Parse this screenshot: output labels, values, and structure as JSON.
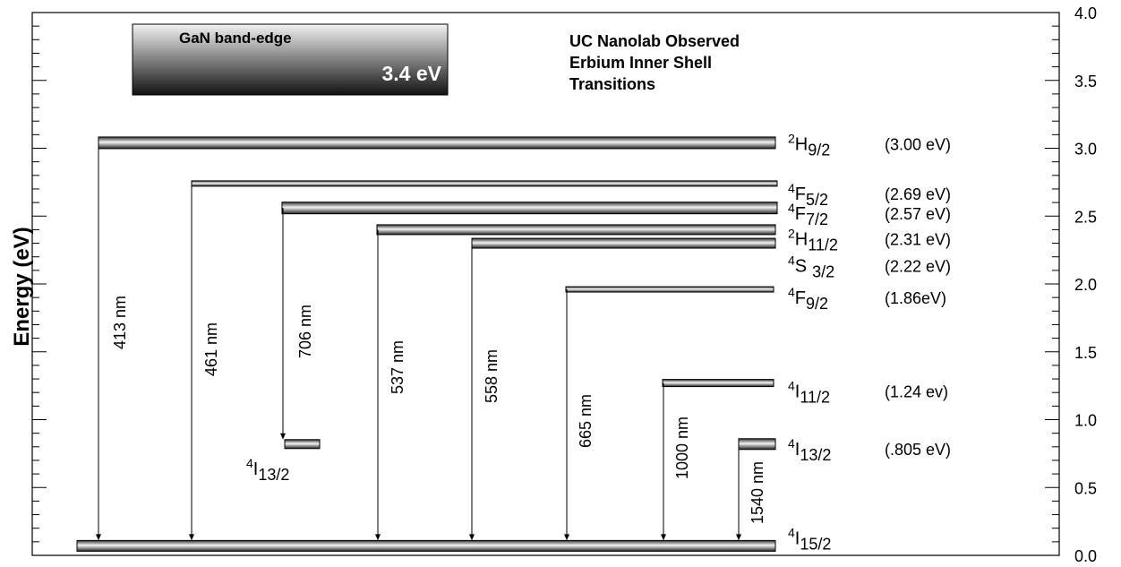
{
  "title": [
    "UC Nanolab Observed",
    "Erbium Inner Shell",
    "Transitions"
  ],
  "band_edge": {
    "label": "GaN band-edge",
    "value_label": "3.4 eV"
  },
  "axis": {
    "label": "Energy (eV)",
    "ylim": [
      0,
      4
    ],
    "yticks": [
      {
        "value": 0,
        "label": "0.0"
      },
      {
        "value": 0.5,
        "label": "0.5"
      },
      {
        "value": 1,
        "label": "1.0"
      },
      {
        "value": 1.5,
        "label": "1.5"
      },
      {
        "value": 2,
        "label": "2.0"
      },
      {
        "value": 2.5,
        "label": "2.5"
      },
      {
        "value": 3,
        "label": "3.0"
      },
      {
        "value": 3.5,
        "label": "3.5"
      },
      {
        "value": 4,
        "label": "4.0"
      }
    ],
    "minor_yticks": [
      0.1,
      0.2,
      0.3,
      0.4,
      0.6,
      0.7,
      0.8,
      0.9,
      1.1,
      1.2,
      1.3,
      1.4,
      1.6,
      1.7,
      1.8,
      1.9,
      2.1,
      2.2,
      2.3,
      2.4,
      2.6,
      2.7,
      2.8,
      2.9,
      3.1,
      3.2,
      3.3,
      3.4,
      3.6,
      3.7,
      3.8,
      3.9
    ]
  },
  "levels": [
    {
      "term": {
        "sup": "2",
        "main": "H",
        "sub": "9/2"
      },
      "energy_label": "(3.00 eV)",
      "energy": 3.04
    },
    {
      "term": {
        "sup": "4",
        "main": "F",
        "sub": "5/2"
      },
      "energy_label": "(2.69 eV)",
      "energy": 2.74
    },
    {
      "term": {
        "sup": "4",
        "main": "F",
        "sub": "7/2"
      },
      "energy_label": "(2.57 eV)",
      "energy": 2.56
    },
    {
      "term": {
        "sup": "2",
        "main": "H",
        "sub": "11/2"
      },
      "energy_label": "(2.31 eV)",
      "energy": 2.4
    },
    {
      "term": {
        "sup": "4",
        "main": "S",
        "sub": "3/2"
      },
      "energy_label": "(2.22 eV)",
      "energy": 2.3
    },
    {
      "term": {
        "sup": "4",
        "main": "F",
        "sub": "9/2"
      },
      "energy_label": "(1.86eV)",
      "energy": 1.96
    },
    {
      "term": {
        "sup": "4",
        "main": "I",
        "sub": "11/2"
      },
      "energy_label": "(1.24 ev)",
      "energy": 1.27
    },
    {
      "term": {
        "sup": "4",
        "main": "I",
        "sub": "13/2"
      },
      "energy_label": "(.805 eV)",
      "energy": 0.82
    },
    {
      "term": {
        "sup": "4",
        "main": "I",
        "sub": "15/2"
      },
      "energy": 0.07
    },
    {
      "term": {
        "sup": "4",
        "main": "I",
        "sub": "13/2"
      },
      "energy": 0.82
    }
  ],
  "transitions": [
    "413 nm",
    "461 nm",
    "706 nm",
    "537 nm",
    "558 nm",
    "665 nm",
    "1000 nm",
    "1540 nm"
  ]
}
